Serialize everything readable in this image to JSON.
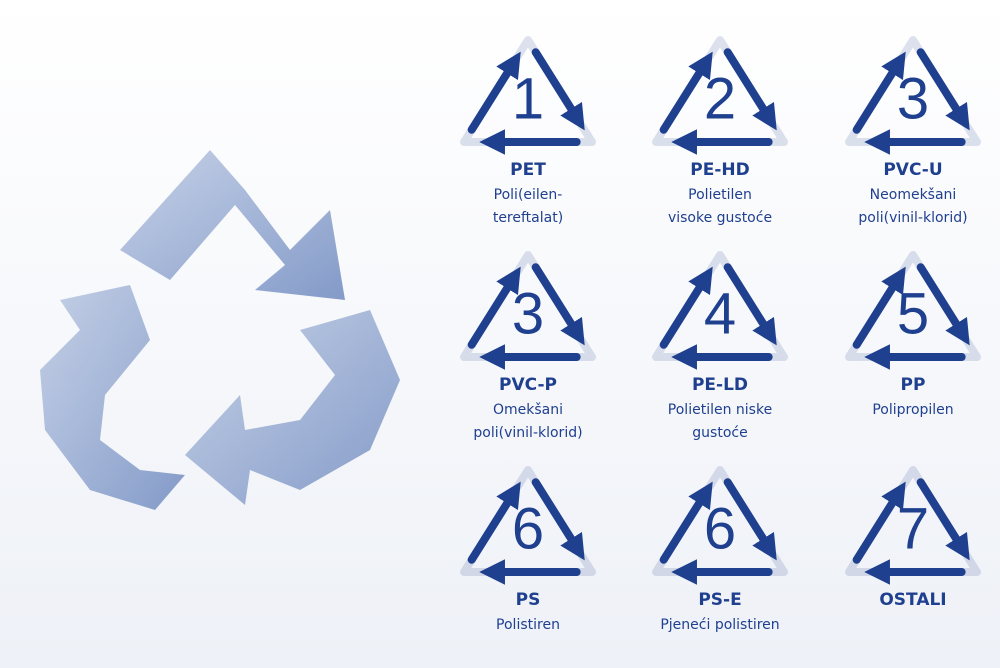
{
  "items": [
    {
      "number": "1",
      "code": "PET",
      "description": [
        "Poli(eilen-",
        "tereftalat)"
      ]
    },
    {
      "number": "2",
      "code": "PE-HD",
      "description": [
        "Polietilen",
        "visoke gustoće"
      ]
    },
    {
      "number": "3",
      "code": "PVC-U",
      "description": [
        "Neomekšani",
        "poli(vinil-klorid)"
      ]
    },
    {
      "number": "3",
      "code": "PVC-P",
      "description": [
        "Omekšani",
        "poli(vinil-klorid)"
      ]
    },
    {
      "number": "4",
      "code": "PE-LD",
      "description": [
        "Polietilen niske",
        "gustoće"
      ]
    },
    {
      "number": "5",
      "code": "PP",
      "description": [
        "Polipropilen"
      ]
    },
    {
      "number": "6",
      "code": "PS",
      "description": [
        "Polistiren"
      ]
    },
    {
      "number": "6",
      "code": "PS-E",
      "description": [
        "Pjeneći polistiren"
      ]
    },
    {
      "number": "7",
      "code": "OSTALI",
      "description": []
    }
  ]
}
